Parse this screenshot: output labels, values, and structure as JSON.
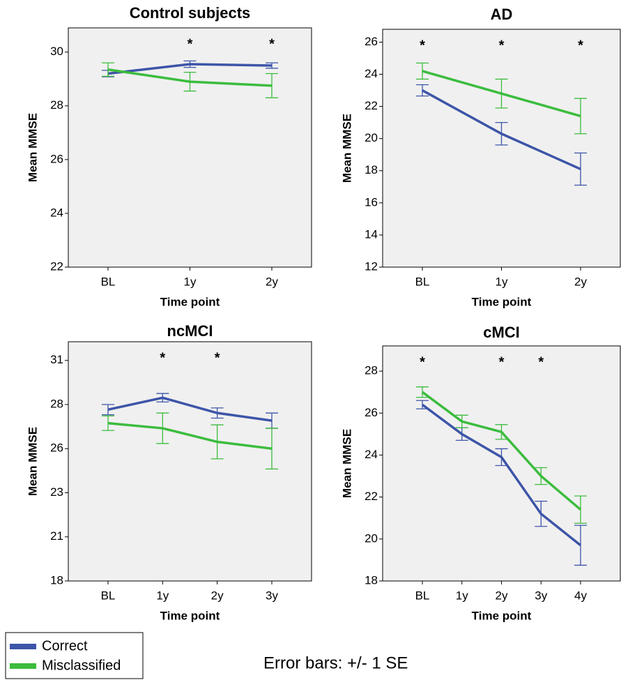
{
  "chart_data": [
    {
      "type": "line",
      "title": "Control subjects",
      "x_label": "Time point",
      "y_label": "Mean MMSE",
      "categories": [
        "BL",
        "1y",
        "2y"
      ],
      "significance": [
        null,
        "*",
        "*"
      ],
      "ylim": [
        22,
        30.9
      ],
      "yticks": [
        22,
        24,
        26,
        28,
        30
      ],
      "series": [
        {
          "name": "Correct",
          "color": "#3d55a8",
          "values": [
            29.2,
            29.55,
            29.5
          ],
          "errors": [
            0.12,
            0.12,
            0.1
          ]
        },
        {
          "name": "Misclassified",
          "color": "#3cbc3e",
          "values": [
            29.35,
            28.9,
            28.75
          ],
          "errors": [
            0.25,
            0.35,
            0.45
          ]
        }
      ]
    },
    {
      "type": "line",
      "title": "AD",
      "x_label": "Time point",
      "y_label": "Mean MMSE",
      "categories": [
        "BL",
        "1y",
        "2y"
      ],
      "significance": [
        "*",
        "*",
        "*"
      ],
      "ylim": [
        12,
        26.8
      ],
      "yticks": [
        12,
        14,
        16,
        18,
        20,
        22,
        24,
        26
      ],
      "series": [
        {
          "name": "Correct",
          "color": "#3d55a8",
          "values": [
            23.0,
            20.3,
            18.1
          ],
          "errors": [
            0.35,
            0.7,
            1.0
          ]
        },
        {
          "name": "Misclassified",
          "color": "#3cbc3e",
          "values": [
            24.2,
            22.8,
            21.4
          ],
          "errors": [
            0.5,
            0.9,
            1.1
          ]
        }
      ]
    },
    {
      "type": "line",
      "title": "ncMCI",
      "x_label": "Time point",
      "y_label": "Mean MMSE",
      "categories": [
        "BL",
        "1y",
        "2y",
        "3y"
      ],
      "significance": [
        null,
        "*",
        "*",
        null
      ],
      "ylim": [
        18,
        32.1
      ],
      "yticks": [
        {
          "value": 18,
          "label": "18"
        },
        {
          "value": 20.6,
          "label": "21"
        },
        {
          "value": 23.2,
          "label": "23"
        },
        {
          "value": 25.8,
          "label": "26"
        },
        {
          "value": 28.4,
          "label": "28"
        },
        {
          "value": 31,
          "label": "31"
        }
      ],
      "series": [
        {
          "name": "Correct",
          "color": "#3d55a8",
          "values": [
            28.1,
            28.8,
            27.9,
            27.45
          ],
          "errors": [
            0.3,
            0.25,
            0.3,
            0.45
          ]
        },
        {
          "name": "Misclassified",
          "color": "#3cbc3e",
          "values": [
            27.3,
            27.0,
            26.2,
            25.8
          ],
          "errors": [
            0.43,
            0.9,
            1.0,
            1.2
          ]
        }
      ]
    },
    {
      "type": "line",
      "title": "cMCI",
      "x_label": "Time point",
      "y_label": "Mean MMSE",
      "categories": [
        "BL",
        "1y",
        "2y",
        "3y",
        "4y"
      ],
      "significance": [
        "*",
        null,
        "*",
        "*",
        null
      ],
      "ylim": [
        18,
        29.2
      ],
      "yticks": [
        18,
        20,
        22,
        24,
        26,
        28
      ],
      "series": [
        {
          "name": "Correct",
          "color": "#3d55a8",
          "values": [
            26.4,
            25.0,
            23.9,
            21.2,
            19.7
          ],
          "errors": [
            0.2,
            0.3,
            0.4,
            0.6,
            0.95
          ]
        },
        {
          "name": "Misclassified",
          "color": "#3cbc3e",
          "values": [
            27.0,
            25.6,
            25.1,
            23.0,
            21.4
          ],
          "errors": [
            0.25,
            0.3,
            0.35,
            0.4,
            0.65
          ]
        }
      ]
    }
  ],
  "note": "Error bars: +/- 1 SE"
}
